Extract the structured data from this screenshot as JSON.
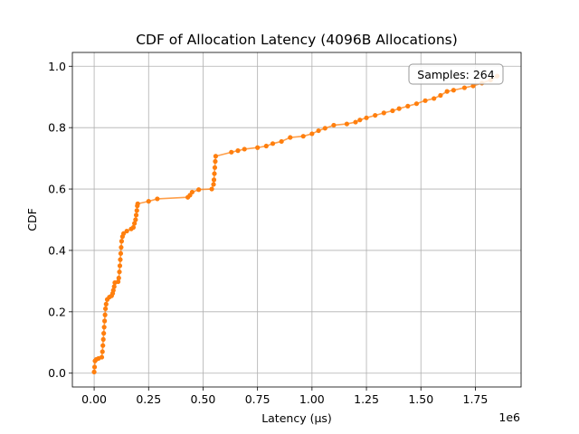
{
  "chart_data": {
    "type": "line",
    "title": "CDF of Allocation Latency (4096B Allocations)",
    "xlabel": "Latency (µs)",
    "ylabel": "CDF",
    "x_offset_label": "1e6",
    "xlim": [
      -100000,
      1960000
    ],
    "ylim": [
      -0.045,
      1.045
    ],
    "x_ticks": [
      0,
      250000,
      500000,
      750000,
      1000000,
      1250000,
      1500000,
      1750000
    ],
    "x_tick_labels": [
      "0.00",
      "0.25",
      "0.50",
      "0.75",
      "1.00",
      "1.25",
      "1.50",
      "1.75"
    ],
    "y_ticks": [
      0.0,
      0.2,
      0.4,
      0.6,
      0.8,
      1.0
    ],
    "y_tick_labels": [
      "0.0",
      "0.2",
      "0.4",
      "0.6",
      "0.8",
      "1.0"
    ],
    "grid": true,
    "annotation": "Samples: 264",
    "annotation_position": "top-right",
    "series": [
      {
        "name": "CDF",
        "color": "#ff7f0e",
        "points": [
          [
            0,
            0.004
          ],
          [
            2000,
            0.02
          ],
          [
            4000,
            0.04
          ],
          [
            10000,
            0.045
          ],
          [
            20000,
            0.048
          ],
          [
            35000,
            0.052
          ],
          [
            38000,
            0.07
          ],
          [
            40000,
            0.09
          ],
          [
            42000,
            0.11
          ],
          [
            44000,
            0.13
          ],
          [
            46000,
            0.15
          ],
          [
            48000,
            0.17
          ],
          [
            50000,
            0.19
          ],
          [
            52000,
            0.21
          ],
          [
            55000,
            0.225
          ],
          [
            60000,
            0.24
          ],
          [
            70000,
            0.248
          ],
          [
            80000,
            0.252
          ],
          [
            85000,
            0.26
          ],
          [
            88000,
            0.27
          ],
          [
            92000,
            0.282
          ],
          [
            95000,
            0.295
          ],
          [
            110000,
            0.298
          ],
          [
            113000,
            0.31
          ],
          [
            116000,
            0.33
          ],
          [
            118000,
            0.35
          ],
          [
            120000,
            0.37
          ],
          [
            122000,
            0.39
          ],
          [
            124000,
            0.41
          ],
          [
            126000,
            0.43
          ],
          [
            130000,
            0.445
          ],
          [
            135000,
            0.455
          ],
          [
            150000,
            0.463
          ],
          [
            170000,
            0.47
          ],
          [
            180000,
            0.475
          ],
          [
            185000,
            0.488
          ],
          [
            190000,
            0.5
          ],
          [
            193000,
            0.515
          ],
          [
            196000,
            0.53
          ],
          [
            198000,
            0.545
          ],
          [
            200000,
            0.552
          ],
          [
            250000,
            0.56
          ],
          [
            290000,
            0.568
          ],
          [
            430000,
            0.573
          ],
          [
            440000,
            0.58
          ],
          [
            450000,
            0.59
          ],
          [
            480000,
            0.598
          ],
          [
            540000,
            0.6
          ],
          [
            548000,
            0.615
          ],
          [
            550000,
            0.63
          ],
          [
            552000,
            0.65
          ],
          [
            554000,
            0.67
          ],
          [
            556000,
            0.69
          ],
          [
            558000,
            0.707
          ],
          [
            630000,
            0.72
          ],
          [
            660000,
            0.725
          ],
          [
            690000,
            0.73
          ],
          [
            750000,
            0.735
          ],
          [
            790000,
            0.74
          ],
          [
            820000,
            0.748
          ],
          [
            860000,
            0.755
          ],
          [
            900000,
            0.768
          ],
          [
            960000,
            0.772
          ],
          [
            1000000,
            0.78
          ],
          [
            1030000,
            0.79
          ],
          [
            1060000,
            0.798
          ],
          [
            1100000,
            0.808
          ],
          [
            1160000,
            0.812
          ],
          [
            1200000,
            0.818
          ],
          [
            1220000,
            0.825
          ],
          [
            1250000,
            0.832
          ],
          [
            1290000,
            0.84
          ],
          [
            1330000,
            0.848
          ],
          [
            1370000,
            0.855
          ],
          [
            1400000,
            0.862
          ],
          [
            1440000,
            0.87
          ],
          [
            1480000,
            0.878
          ],
          [
            1520000,
            0.888
          ],
          [
            1560000,
            0.895
          ],
          [
            1590000,
            0.905
          ],
          [
            1620000,
            0.918
          ],
          [
            1650000,
            0.922
          ],
          [
            1700000,
            0.93
          ],
          [
            1740000,
            0.936
          ],
          [
            1780000,
            0.945
          ],
          [
            1820000,
            0.955
          ],
          [
            1850000,
            0.968
          ]
        ]
      }
    ]
  }
}
